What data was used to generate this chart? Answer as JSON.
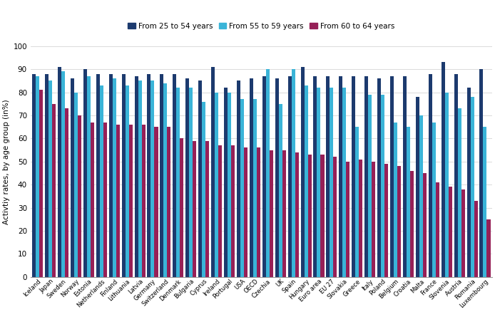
{
  "countries": [
    "Iceland",
    "Japan",
    "Sweden",
    "Norway",
    "Estonia",
    "Netherlands",
    "Finland",
    "Lithuania",
    "Latvia",
    "Germany",
    "Switzerland",
    "Denmark",
    "Bulgaria",
    "Cyprus",
    "Ireland",
    "Portugal",
    "USA",
    "OECD",
    "Czechia",
    "UK",
    "Spain",
    "Hungary",
    "Euro area",
    "EU 27",
    "Slovakia",
    "Greece",
    "Italy",
    "Poland",
    "Belgium",
    "Croatia",
    "Malta",
    "France",
    "Slovenia",
    "Austria",
    "Romania",
    "Luxembourg"
  ],
  "age_25_54": [
    88,
    88,
    91,
    86,
    90,
    88,
    88,
    88,
    87,
    88,
    88,
    88,
    86,
    85,
    91,
    82,
    85,
    86,
    87,
    86,
    87,
    91,
    87,
    87,
    87,
    87,
    87,
    86,
    87,
    87,
    78,
    88,
    93,
    88,
    82,
    90
  ],
  "age_55_59": [
    87,
    85,
    89,
    80,
    87,
    83,
    86,
    83,
    85,
    85,
    84,
    82,
    82,
    76,
    80,
    80,
    77,
    77,
    90,
    75,
    90,
    83,
    82,
    82,
    82,
    65,
    79,
    79,
    67,
    65,
    70,
    67,
    80,
    73,
    78,
    65
  ],
  "age_60_64": [
    81,
    75,
    73,
    70,
    67,
    67,
    66,
    66,
    66,
    65,
    65,
    60,
    59,
    59,
    57,
    57,
    56,
    56,
    55,
    55,
    54,
    53,
    53,
    52,
    50,
    51,
    50,
    49,
    48,
    46,
    45,
    41,
    39,
    38,
    33,
    25
  ],
  "color_25_54": "#1c3a6e",
  "color_55_59": "#3ab4d8",
  "color_60_64": "#962057",
  "ylabel": "Activtiy rates, by age group (in%)",
  "ylim": [
    0,
    100
  ],
  "yticks": [
    0,
    10,
    20,
    30,
    40,
    50,
    60,
    70,
    80,
    90,
    100
  ],
  "legend_labels": [
    "From 25 to 54 years",
    "From 55 to 59 years",
    "From 60 to 64 years"
  ],
  "background_color": "#ffffff",
  "grid_color": "#cccccc"
}
